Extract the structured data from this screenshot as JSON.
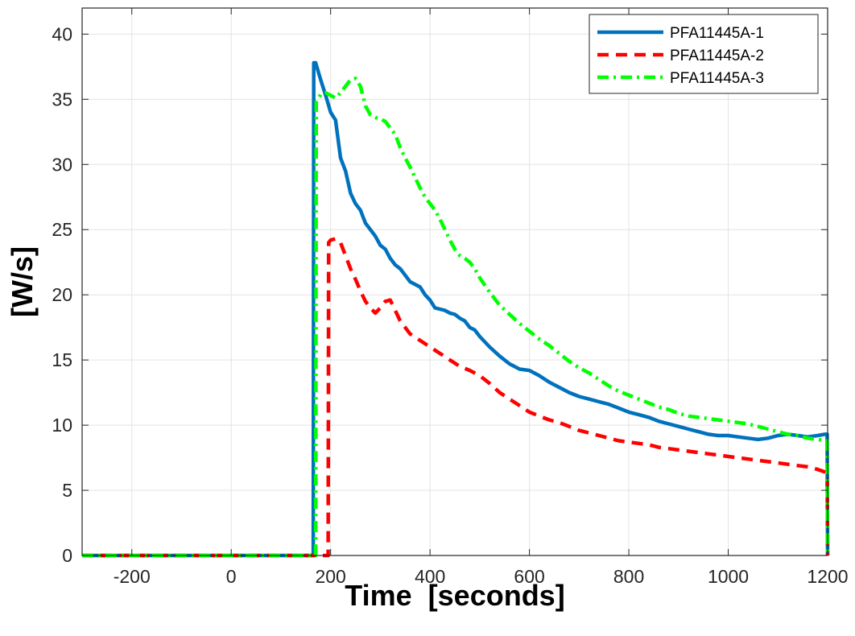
{
  "chart_data": {
    "type": "line",
    "title": "",
    "xlabel": "Time  [seconds]",
    "ylabel": "[W/s]",
    "xlim": [
      -300,
      1200
    ],
    "ylim": [
      0,
      42
    ],
    "x_ticks": [
      -200,
      0,
      200,
      400,
      600,
      800,
      1000,
      1200
    ],
    "y_ticks": [
      0,
      5,
      10,
      15,
      20,
      25,
      30,
      35,
      40
    ],
    "grid": true,
    "legend_position": "top-right",
    "series": [
      {
        "name": "PFA11445A-1",
        "color": "#0072BD",
        "line_style": "solid",
        "x": [
          -300,
          165,
          166,
          170,
          180,
          190,
          200,
          205,
          210,
          220,
          230,
          240,
          250,
          260,
          270,
          280,
          290,
          300,
          310,
          320,
          330,
          340,
          350,
          360,
          370,
          380,
          390,
          400,
          410,
          420,
          430,
          440,
          450,
          460,
          470,
          480,
          490,
          500,
          520,
          540,
          560,
          580,
          600,
          620,
          640,
          660,
          680,
          700,
          720,
          740,
          760,
          780,
          800,
          820,
          840,
          860,
          880,
          900,
          920,
          940,
          960,
          980,
          1000,
          1020,
          1040,
          1060,
          1080,
          1100,
          1120,
          1140,
          1160,
          1180,
          1195,
          1199,
          1200
        ],
        "y": [
          0,
          0,
          37.8,
          37.8,
          36.5,
          35.3,
          34.0,
          33.7,
          33.4,
          30.5,
          29.5,
          27.8,
          27.0,
          26.5,
          25.5,
          25.0,
          24.5,
          23.8,
          23.5,
          22.8,
          22.3,
          22.0,
          21.5,
          21.0,
          20.8,
          20.6,
          20.0,
          19.6,
          19.0,
          18.9,
          18.8,
          18.6,
          18.5,
          18.2,
          18.0,
          17.5,
          17.3,
          16.8,
          16.0,
          15.3,
          14.7,
          14.3,
          14.2,
          13.8,
          13.3,
          12.9,
          12.5,
          12.2,
          12.0,
          11.8,
          11.6,
          11.3,
          11.0,
          10.8,
          10.6,
          10.3,
          10.1,
          9.9,
          9.7,
          9.5,
          9.3,
          9.2,
          9.2,
          9.1,
          9.0,
          8.9,
          9.0,
          9.2,
          9.3,
          9.2,
          9.1,
          9.2,
          9.3,
          9.3,
          0
        ]
      },
      {
        "name": "PFA11445A-2",
        "color": "#FF0000",
        "line_style": "dashed",
        "x": [
          -300,
          195,
          196,
          200,
          210,
          220,
          230,
          240,
          250,
          260,
          270,
          280,
          290,
          300,
          310,
          320,
          330,
          340,
          350,
          360,
          380,
          400,
          420,
          440,
          460,
          480,
          500,
          520,
          540,
          560,
          580,
          600,
          620,
          640,
          660,
          680,
          700,
          720,
          740,
          760,
          780,
          800,
          820,
          840,
          860,
          880,
          900,
          920,
          940,
          960,
          980,
          1000,
          1020,
          1040,
          1060,
          1080,
          1100,
          1120,
          1140,
          1160,
          1180,
          1195,
          1199,
          1200
        ],
        "y": [
          0,
          0,
          24.0,
          24.2,
          24.3,
          24.0,
          23.0,
          22.0,
          21.2,
          20.3,
          19.5,
          19.0,
          18.6,
          19.0,
          19.5,
          19.6,
          18.8,
          18.0,
          17.5,
          17.0,
          16.5,
          16.0,
          15.5,
          15.0,
          14.5,
          14.2,
          13.8,
          13.2,
          12.5,
          12.0,
          11.5,
          11.0,
          10.7,
          10.4,
          10.2,
          9.9,
          9.6,
          9.4,
          9.2,
          9.0,
          8.8,
          8.7,
          8.6,
          8.5,
          8.3,
          8.2,
          8.1,
          8.0,
          7.9,
          7.8,
          7.7,
          7.6,
          7.5,
          7.4,
          7.3,
          7.2,
          7.1,
          7.0,
          6.9,
          6.8,
          6.6,
          6.4,
          6.3,
          0
        ]
      },
      {
        "name": "PFA11445A-3",
        "color": "#00FF00",
        "line_style": "dash-dot",
        "x": [
          -300,
          170,
          171,
          175,
          180,
          190,
          200,
          210,
          220,
          230,
          240,
          250,
          260,
          270,
          280,
          290,
          300,
          310,
          320,
          330,
          340,
          350,
          360,
          370,
          380,
          390,
          400,
          410,
          420,
          430,
          440,
          450,
          460,
          470,
          480,
          490,
          500,
          520,
          540,
          560,
          580,
          600,
          620,
          640,
          660,
          680,
          700,
          720,
          740,
          760,
          780,
          800,
          820,
          840,
          860,
          880,
          900,
          920,
          940,
          960,
          980,
          1000,
          1020,
          1040,
          1060,
          1080,
          1100,
          1120,
          1140,
          1160,
          1180,
          1195,
          1199,
          1200
        ],
        "y": [
          0,
          0,
          34.8,
          35.0,
          35.4,
          35.5,
          35.3,
          35.1,
          35.5,
          36.0,
          36.5,
          36.6,
          36.0,
          34.5,
          33.8,
          33.6,
          33.5,
          33.3,
          32.8,
          32.3,
          31.3,
          30.5,
          29.8,
          29.0,
          28.2,
          27.5,
          27.0,
          26.5,
          25.8,
          25.0,
          24.2,
          23.5,
          23.0,
          22.8,
          22.5,
          22.0,
          21.3,
          20.2,
          19.2,
          18.5,
          17.8,
          17.2,
          16.6,
          16.1,
          15.5,
          14.9,
          14.4,
          14.0,
          13.5,
          13.0,
          12.6,
          12.3,
          12.0,
          11.7,
          11.4,
          11.2,
          10.9,
          10.7,
          10.6,
          10.5,
          10.4,
          10.3,
          10.2,
          10.1,
          9.9,
          9.7,
          9.5,
          9.3,
          9.2,
          9.0,
          8.9,
          8.8,
          8.8,
          0
        ]
      }
    ]
  }
}
